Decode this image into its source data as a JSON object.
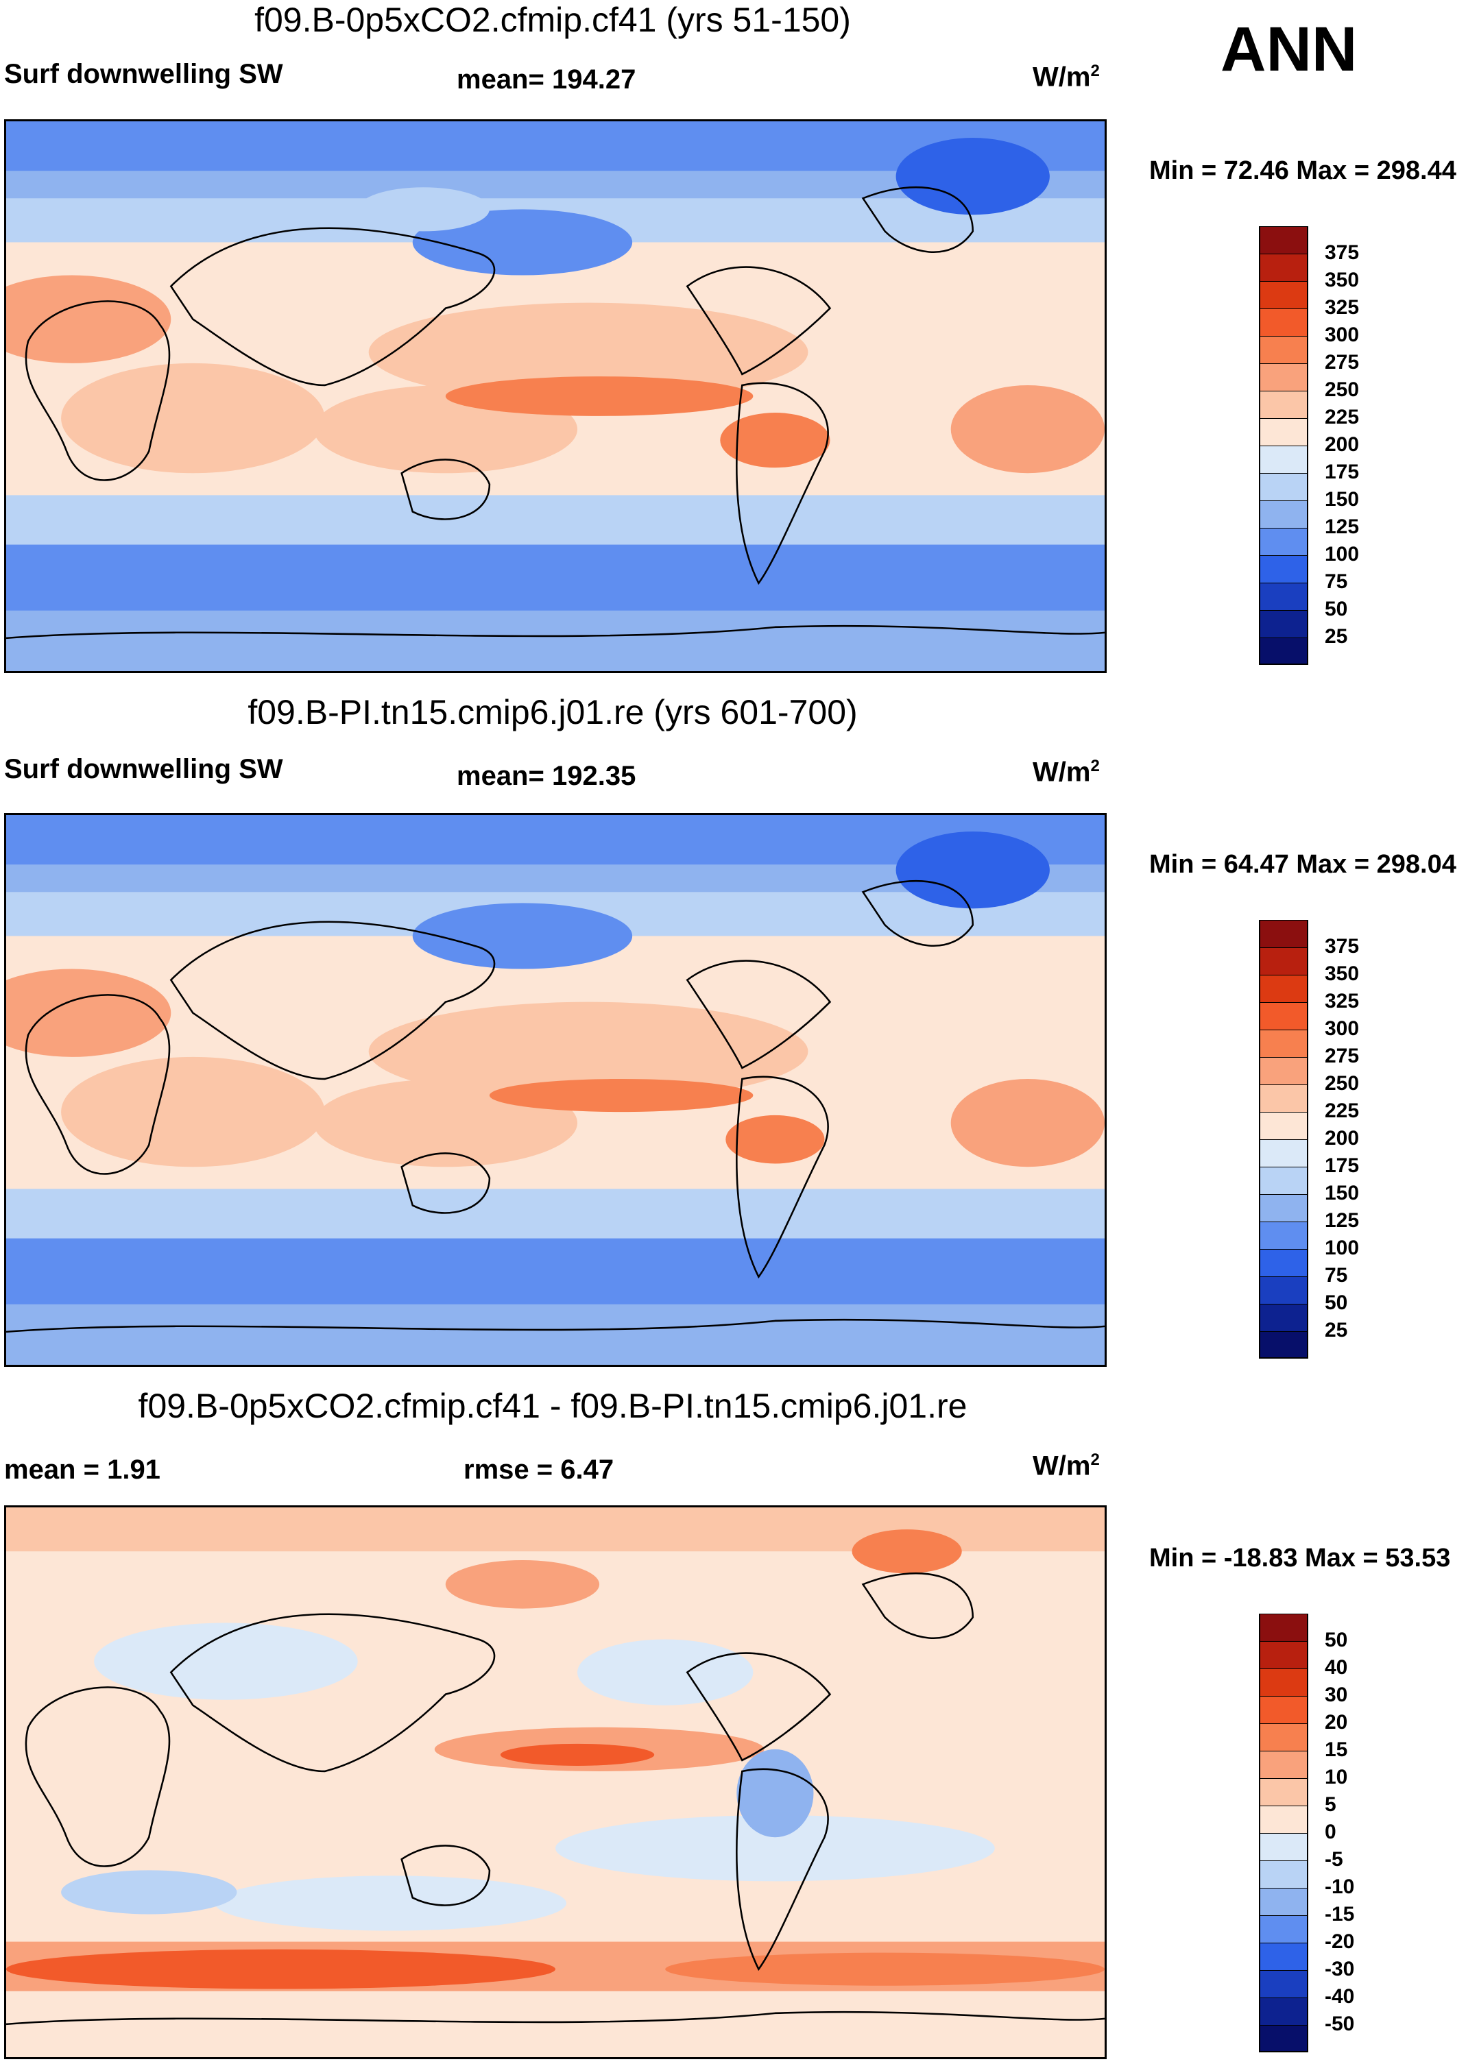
{
  "season": "ANN",
  "panels": [
    {
      "title": "f09.B-0p5xCO2.cfmip.cf41 (yrs 51-150)",
      "left_label": "Surf downwelling SW",
      "center_label": "mean= 194.27",
      "units_base": "W/m",
      "units_exp": "2",
      "minmax": "Min =  72.46 Max = 298.44",
      "map_name": "Surface downwelling shortwave radiation, experiment",
      "colorbar": {
        "labels": [
          "375",
          "350",
          "325",
          "300",
          "275",
          "250",
          "225",
          "200",
          "175",
          "150",
          "125",
          "100",
          "75",
          "50",
          "25"
        ],
        "colors": [
          "#8b0f0f",
          "#b8200f",
          "#dc3a12",
          "#f25a2a",
          "#f7804f",
          "#f9a27c",
          "#fbc6a8",
          "#fde6d6",
          "#dbe9f8",
          "#b9d3f5",
          "#8fb3ef",
          "#5f8ef0",
          "#2e62e8",
          "#1a3fc0",
          "#0d2290",
          "#070f6a"
        ]
      }
    },
    {
      "title": "f09.B-PI.tn15.cmip6.j01.re (yrs 601-700)",
      "left_label": "Surf downwelling SW",
      "center_label": "mean= 192.35",
      "units_base": "W/m",
      "units_exp": "2",
      "minmax": "Min =  64.47 Max = 298.04",
      "map_name": "Surface downwelling shortwave radiation, control",
      "colorbar": {
        "labels": [
          "375",
          "350",
          "325",
          "300",
          "275",
          "250",
          "225",
          "200",
          "175",
          "150",
          "125",
          "100",
          "75",
          "50",
          "25"
        ],
        "colors": [
          "#8b0f0f",
          "#b8200f",
          "#dc3a12",
          "#f25a2a",
          "#f7804f",
          "#f9a27c",
          "#fbc6a8",
          "#fde6d6",
          "#dbe9f8",
          "#b9d3f5",
          "#8fb3ef",
          "#5f8ef0",
          "#2e62e8",
          "#1a3fc0",
          "#0d2290",
          "#070f6a"
        ]
      }
    },
    {
      "title": "f09.B-0p5xCO2.cfmip.cf41 - f09.B-PI.tn15.cmip6.j01.re",
      "left_label": "mean =    1.91",
      "center_label": "rmse =    6.47",
      "units_base": "W/m",
      "units_exp": "2",
      "minmax": "Min = -18.83 Max =  53.53",
      "map_name": "Difference map",
      "colorbar": {
        "labels": [
          "50",
          "40",
          "30",
          "20",
          "15",
          "10",
          "5",
          "0",
          "-5",
          "-10",
          "-15",
          "-20",
          "-30",
          "-40",
          "-50"
        ],
        "colors": [
          "#8b0f0f",
          "#b8200f",
          "#dc3a12",
          "#f25a2a",
          "#f7804f",
          "#f9a27c",
          "#fbc6a8",
          "#fde6d6",
          "#dbe9f8",
          "#b9d3f5",
          "#8fb3ef",
          "#5f8ef0",
          "#2e62e8",
          "#1a3fc0",
          "#0d2290",
          "#070f6a"
        ]
      }
    }
  ]
}
